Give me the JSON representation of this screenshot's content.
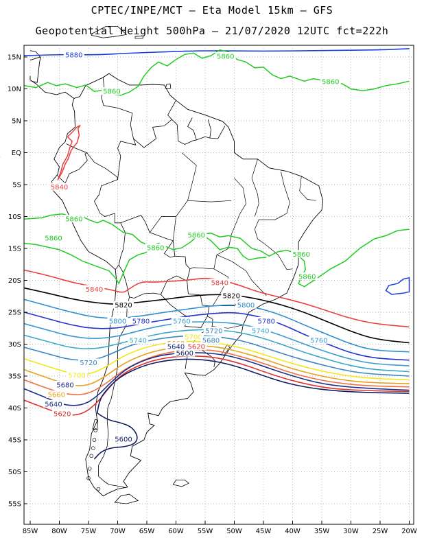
{
  "title_line1": "CPTEC/INPE/MCT —  Eta Model 15km — GFS",
  "title_line2": "Geopotential Height 500hPa — 21/07/2020 12UTC fct=222h",
  "lat_ticks": [
    "15N",
    "10N",
    "5N",
    "EQ",
    "5S",
    "10S",
    "15S",
    "20S",
    "25S",
    "30S",
    "35S",
    "40S",
    "45S",
    "50S",
    "55S"
  ],
  "lon_ticks": [
    "85W",
    "80W",
    "75W",
    "70W",
    "65W",
    "60W",
    "55W",
    "50W",
    "45W",
    "40W",
    "35W",
    "30W",
    "25W",
    "20W"
  ],
  "colors": {
    "c5880": "#1a3de0",
    "c5860": "#22cc22",
    "c5840": "#e84040",
    "c5820": "#000000",
    "c5800": "#2c8fd0",
    "c5780": "#2233cc",
    "c5760": "#3a9bd0",
    "c5740": "#3aa8c8",
    "c5720": "#3a86c0",
    "c5700": "#f0e81a",
    "c5680": "#e8a020",
    "c5660": "#f07040",
    "c5640": "#1a2e8a",
    "c5620": "#e03030",
    "c5600": "#101e60",
    "coast": "#000000"
  },
  "contour_labels": [
    {
      "t": "5880",
      "lat": 15.2,
      "lon": -77.5,
      "c": "c5880"
    },
    {
      "t": "5860",
      "lat": 15.0,
      "lon": -51.5,
      "c": "c5860"
    },
    {
      "t": "5860",
      "lat": 11.0,
      "lon": -33.5,
      "c": "c5860"
    },
    {
      "t": "5860",
      "lat": 9.5,
      "lon": -71.0,
      "c": "c5860"
    },
    {
      "t": "5840",
      "lat": -5.5,
      "lon": -80.0,
      "c": "c5840"
    },
    {
      "t": "5860",
      "lat": -10.5,
      "lon": -77.5,
      "c": "c5860"
    },
    {
      "t": "5860",
      "lat": -13.5,
      "lon": -81.0,
      "c": "c5860"
    },
    {
      "t": "5860",
      "lat": -13.0,
      "lon": -56.5,
      "c": "c5860"
    },
    {
      "t": "5860",
      "lat": -15.0,
      "lon": -63.5,
      "c": "c5860"
    },
    {
      "t": "5860",
      "lat": -16.0,
      "lon": -38.5,
      "c": "c5860"
    },
    {
      "t": "5860",
      "lat": -19.5,
      "lon": -37.5,
      "c": "c5860"
    },
    {
      "t": "5840",
      "lat": -21.5,
      "lon": -74.0,
      "c": "c5840"
    },
    {
      "t": "5840",
      "lat": -20.5,
      "lon": -52.5,
      "c": "c5840"
    },
    {
      "t": "5820",
      "lat": -24.0,
      "lon": -69.0,
      "c": "c5820"
    },
    {
      "t": "5820",
      "lat": -22.5,
      "lon": -50.5,
      "c": "c5820"
    },
    {
      "t": "5800",
      "lat": -24.0,
      "lon": -48.0,
      "c": "c5800"
    },
    {
      "t": "5800",
      "lat": -26.5,
      "lon": -70.0,
      "c": "c5800"
    },
    {
      "t": "5780",
      "lat": -26.5,
      "lon": -66.0,
      "c": "c5780"
    },
    {
      "t": "5760",
      "lat": -26.5,
      "lon": -59.0,
      "c": "c5760"
    },
    {
      "t": "5780",
      "lat": -26.5,
      "lon": -44.5,
      "c": "c5780"
    },
    {
      "t": "5720",
      "lat": -28.0,
      "lon": -53.5,
      "c": "c5720"
    },
    {
      "t": "5740",
      "lat": -28.0,
      "lon": -45.5,
      "c": "c5740"
    },
    {
      "t": "5760",
      "lat": -29.5,
      "lon": -35.5,
      "c": "c5760"
    },
    {
      "t": "5740",
      "lat": -29.5,
      "lon": -66.5,
      "c": "c5740"
    },
    {
      "t": "5700",
      "lat": -29.0,
      "lon": -57.0,
      "c": "c5700"
    },
    {
      "t": "5680",
      "lat": -29.5,
      "lon": -54.0,
      "c": "c5720"
    },
    {
      "t": "5660",
      "lat": -30.0,
      "lon": -60.0,
      "c": "c5680"
    },
    {
      "t": "5640",
      "lat": -30.5,
      "lon": -60.0,
      "c": "c5640"
    },
    {
      "t": "5620",
      "lat": -30.5,
      "lon": -56.5,
      "c": "c5620"
    },
    {
      "t": "5600",
      "lat": -31.5,
      "lon": -58.5,
      "c": "c5600"
    },
    {
      "t": "5720",
      "lat": -33.0,
      "lon": -75.0,
      "c": "c5720"
    },
    {
      "t": "5700",
      "lat": -35.0,
      "lon": -77.0,
      "c": "c5700"
    },
    {
      "t": "5680",
      "lat": -36.5,
      "lon": -79.0,
      "c": "c5640"
    },
    {
      "t": "5660",
      "lat": -38.0,
      "lon": -80.5,
      "c": "c5680"
    },
    {
      "t": "5640",
      "lat": -39.5,
      "lon": -81.0,
      "c": "c5640"
    },
    {
      "t": "5620",
      "lat": -41.0,
      "lon": -79.5,
      "c": "c5620"
    },
    {
      "t": "5600",
      "lat": -45.0,
      "lon": -69.0,
      "c": "c5600"
    }
  ]
}
